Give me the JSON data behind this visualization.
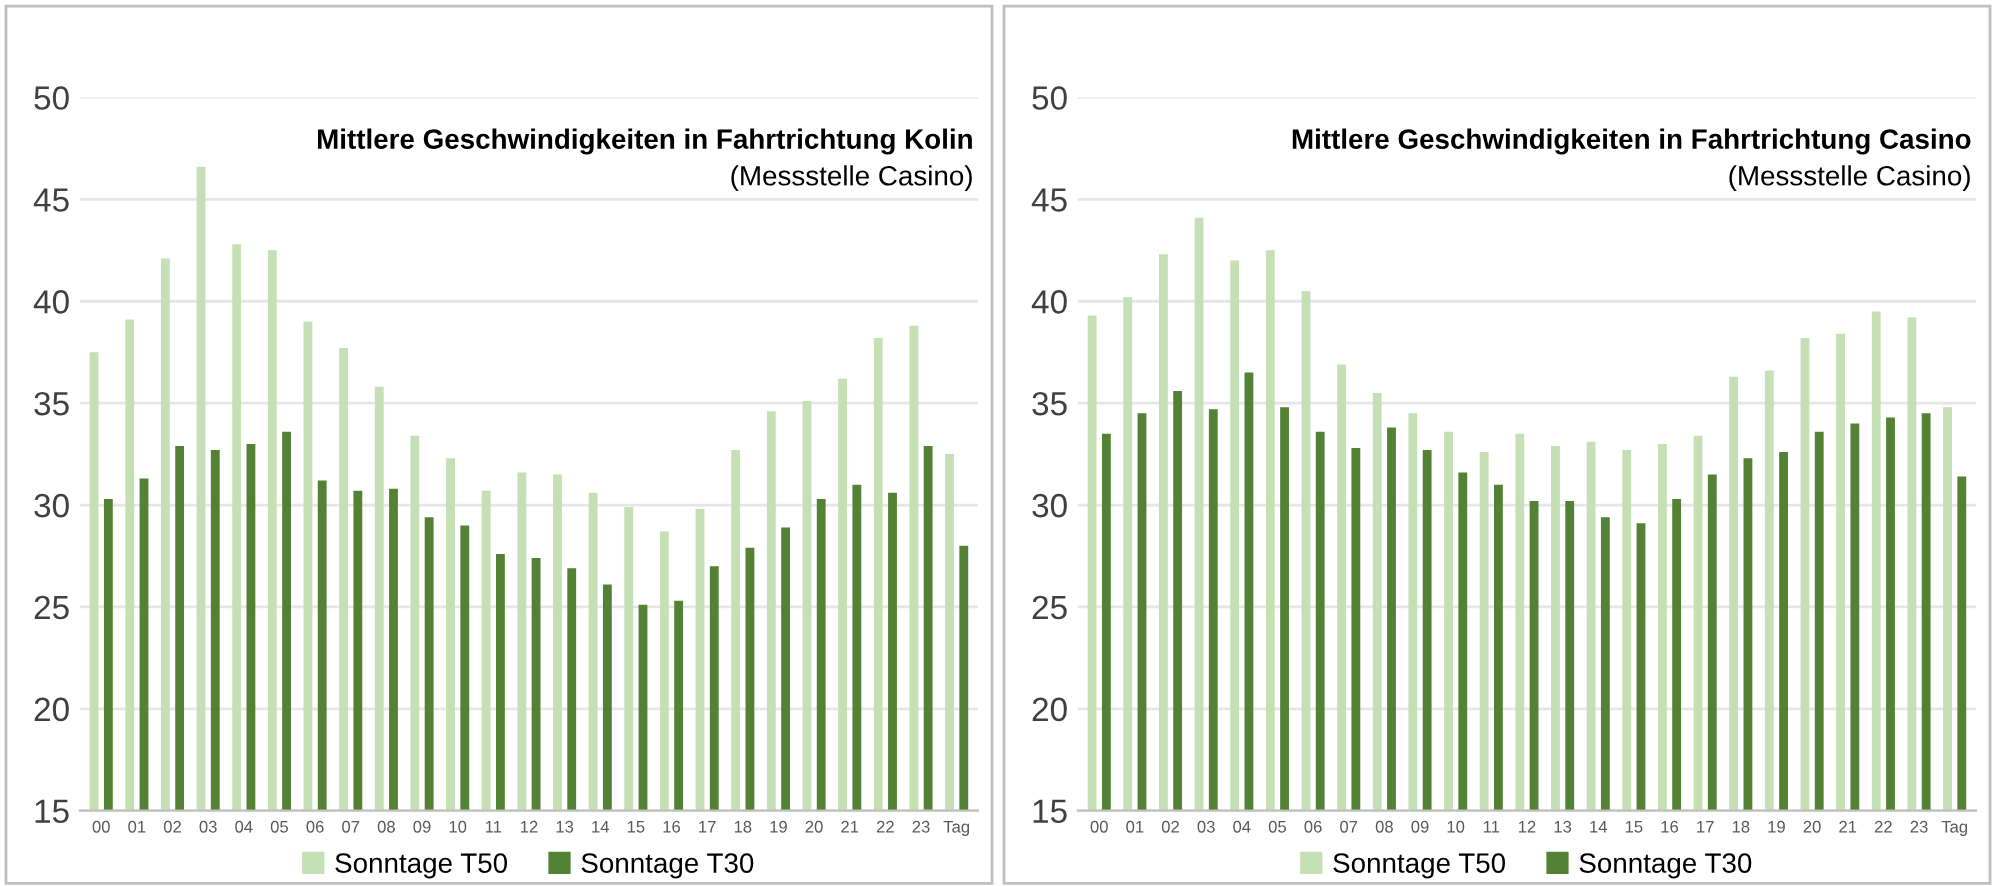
{
  "chart_data": [
    {
      "type": "bar",
      "title": "Mittlere Geschwindigkeiten in Fahrtrichtung Kolin",
      "subtitle": "(Messstelle Casino)",
      "categories": [
        "00",
        "01",
        "02",
        "03",
        "04",
        "05",
        "06",
        "07",
        "08",
        "09",
        "10",
        "11",
        "12",
        "13",
        "14",
        "15",
        "16",
        "17",
        "18",
        "19",
        "20",
        "21",
        "22",
        "23",
        "Tag"
      ],
      "series": [
        {
          "name": "Sonntage T50",
          "color": "#c5e0b4",
          "values": [
            37.5,
            39.1,
            42.1,
            46.6,
            42.8,
            42.5,
            39.0,
            37.7,
            35.8,
            33.4,
            32.3,
            30.7,
            31.6,
            31.5,
            30.6,
            29.9,
            28.7,
            29.8,
            32.7,
            34.6,
            35.1,
            36.2,
            38.2,
            38.8,
            32.5
          ]
        },
        {
          "name": "Sonntage T30",
          "color": "#548235",
          "values": [
            30.3,
            31.3,
            32.9,
            32.7,
            33.0,
            33.6,
            31.2,
            30.7,
            30.8,
            29.4,
            29.0,
            27.6,
            27.4,
            26.9,
            26.1,
            25.1,
            25.3,
            27.0,
            27.9,
            28.9,
            30.3,
            31.0,
            30.6,
            32.9,
            28.0
          ]
        }
      ],
      "ylim": [
        15,
        50
      ],
      "yticks": [
        15,
        20,
        25,
        30,
        35,
        40,
        45,
        50
      ],
      "grid": "y",
      "legend": "bottom"
    },
    {
      "type": "bar",
      "title": "Mittlere Geschwindigkeiten in Fahrtrichtung Casino",
      "subtitle": "(Messstelle Casino)",
      "categories": [
        "00",
        "01",
        "02",
        "03",
        "04",
        "05",
        "06",
        "07",
        "08",
        "09",
        "10",
        "11",
        "12",
        "13",
        "14",
        "15",
        "16",
        "17",
        "18",
        "19",
        "20",
        "21",
        "22",
        "23",
        "Tag"
      ],
      "series": [
        {
          "name": "Sonntage T50",
          "color": "#c5e0b4",
          "values": [
            39.3,
            40.2,
            42.3,
            44.1,
            42.0,
            42.5,
            40.5,
            36.9,
            35.5,
            34.5,
            33.6,
            32.6,
            33.5,
            32.9,
            33.1,
            32.7,
            33.0,
            33.4,
            36.3,
            36.6,
            38.2,
            38.4,
            39.5,
            39.2,
            34.8
          ]
        },
        {
          "name": "Sonntage T30",
          "color": "#548235",
          "values": [
            33.5,
            34.5,
            35.6,
            34.7,
            36.5,
            34.8,
            33.6,
            32.8,
            33.8,
            32.7,
            31.6,
            31.0,
            30.2,
            30.2,
            29.4,
            29.1,
            30.3,
            31.5,
            32.3,
            32.6,
            33.6,
            34.0,
            34.3,
            34.5,
            31.4
          ]
        }
      ],
      "ylim": [
        15,
        50
      ],
      "yticks": [
        15,
        20,
        25,
        30,
        35,
        40,
        45,
        50
      ],
      "grid": "y",
      "legend": "bottom"
    }
  ]
}
